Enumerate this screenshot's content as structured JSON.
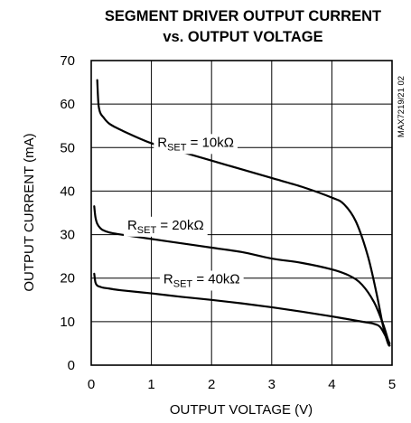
{
  "chart_data": {
    "type": "line",
    "title": "SEGMENT DRIVER OUTPUT CURRENT",
    "subtitle": "vs. OUTPUT VOLTAGE",
    "xlabel": "OUTPUT VOLTAGE (V)",
    "ylabel": "OUTPUT CURRENT (mA)",
    "xlim": [
      0,
      5
    ],
    "ylim": [
      0,
      70
    ],
    "xticks": [
      "0",
      "1",
      "2",
      "3",
      "4",
      "5"
    ],
    "yticks": [
      "0",
      "10",
      "20",
      "30",
      "40",
      "50",
      "60",
      "70"
    ],
    "grid": true,
    "part_number": "MAX7219/21 02",
    "series": [
      {
        "name": "RSET = 10kΩ",
        "label_parts": {
          "main": "R",
          "sub": "SET",
          "rest": " = 10kΩ"
        },
        "x": [
          0.1,
          0.12,
          0.15,
          0.2,
          0.3,
          0.5,
          1.0,
          1.5,
          2.0,
          2.5,
          3.0,
          3.5,
          4.0,
          4.2,
          4.4,
          4.6,
          4.75,
          4.85,
          4.92,
          4.95
        ],
        "y": [
          65.5,
          60,
          58,
          57,
          55.5,
          54,
          51,
          49,
          47,
          45,
          43,
          41,
          38.5,
          37,
          33,
          25,
          16,
          9,
          5.5,
          4.5
        ]
      },
      {
        "name": "RSET = 20kΩ",
        "label_parts": {
          "main": "R",
          "sub": "SET",
          "rest": " = 20kΩ"
        },
        "x": [
          0.05,
          0.07,
          0.1,
          0.15,
          0.2,
          0.3,
          0.5,
          1.0,
          1.5,
          2.0,
          2.5,
          3.0,
          3.5,
          4.0,
          4.3,
          4.5,
          4.7,
          4.85,
          4.93,
          4.96
        ],
        "y": [
          36.5,
          34,
          32.5,
          31.5,
          31,
          30.5,
          30,
          29,
          28,
          27,
          26,
          24.5,
          23.5,
          22,
          20.5,
          18.5,
          14.5,
          9.5,
          6,
          5
        ]
      },
      {
        "name": "RSET = 40kΩ",
        "label_parts": {
          "main": "R",
          "sub": "SET",
          "rest": " = 40kΩ"
        },
        "x": [
          0.05,
          0.07,
          0.1,
          0.15,
          0.2,
          0.3,
          0.5,
          1.0,
          1.5,
          2.0,
          2.5,
          3.0,
          3.5,
          4.0,
          4.5,
          4.7,
          4.8,
          4.88,
          4.93,
          4.96
        ],
        "y": [
          21,
          19,
          18.3,
          18,
          17.8,
          17.6,
          17.2,
          16.5,
          15.7,
          15,
          14.2,
          13.3,
          12.3,
          11.2,
          10,
          9.5,
          8.8,
          7,
          5.5,
          4.5
        ]
      }
    ]
  }
}
